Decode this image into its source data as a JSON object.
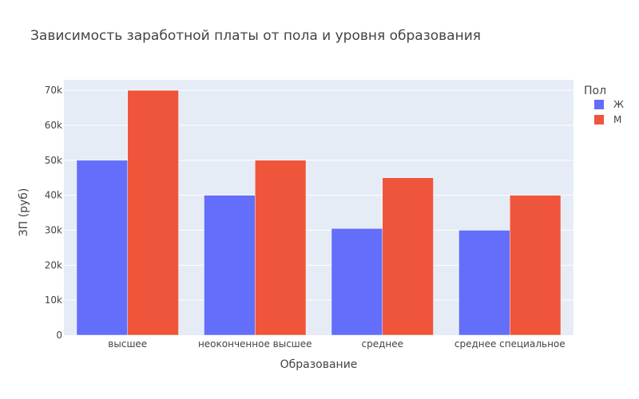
{
  "chart_data": {
    "type": "bar",
    "title": "Зависимость заработной платы от пола и уровня образования",
    "xlabel": "Образование",
    "ylabel": "ЗП (руб)",
    "categories": [
      "высшее",
      "неоконченное высшее",
      "среднее",
      "среднее специальное"
    ],
    "series": [
      {
        "name": "Ж",
        "color": "#636efa",
        "values": [
          50000,
          40000,
          30500,
          30000
        ]
      },
      {
        "name": "М",
        "color": "#ef553b",
        "values": [
          70000,
          50000,
          45000,
          40000
        ]
      }
    ],
    "ylim": [
      0,
      73000
    ],
    "yticks": [
      0,
      10000,
      20000,
      30000,
      40000,
      50000,
      60000,
      70000
    ],
    "ytick_labels": [
      "0",
      "10k",
      "20k",
      "30k",
      "40k",
      "50k",
      "60k",
      "70k"
    ],
    "legend_title": "Пол",
    "legend_position": "top-right",
    "grid": true,
    "plot_background": "#e5ecf6"
  }
}
